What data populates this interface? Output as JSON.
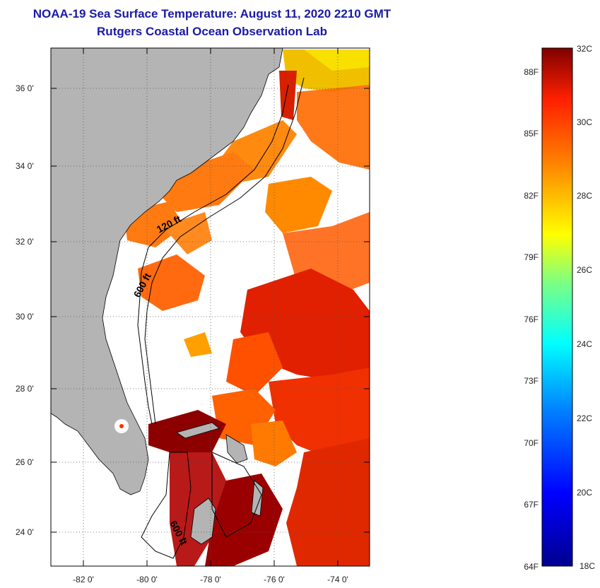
{
  "header": {
    "title": "NOAA-19 Sea Surface Temperature:  August 11, 2020 2210 GMT",
    "subtitle": "Rutgers Coastal Ocean Observation Lab"
  },
  "map": {
    "lat_range": [
      23,
      37
    ],
    "lon_range": [
      -83,
      -73
    ],
    "lat_labels": [
      "24 0'",
      "26 0'",
      "28 0'",
      "30 0'",
      "32 0'",
      "34 0'",
      "36 0'"
    ],
    "lon_labels": [
      "-82 0'",
      "-80 0'",
      "-78 0'",
      "-76 0'",
      "-74 0'"
    ],
    "contour_labels": [
      "120 ft",
      "600 ft",
      "600 ft"
    ],
    "land_color": "#b4b4b4",
    "grid": "dotted"
  },
  "colorbar": {
    "celsius_labels": [
      "32C",
      "30C",
      "28C",
      "26C",
      "24C",
      "22C",
      "20C",
      "18C"
    ],
    "fahrenheit_labels": [
      "88F",
      "85F",
      "82F",
      "79F",
      "76F",
      "73F",
      "70F",
      "67F",
      "64F"
    ],
    "range_c": [
      18,
      32
    ]
  }
}
